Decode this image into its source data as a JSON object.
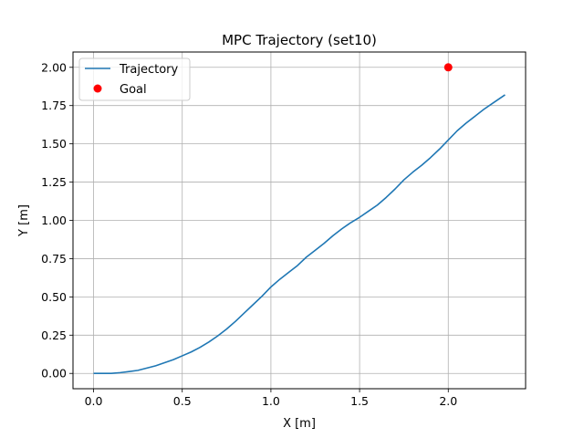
{
  "chart_data": {
    "type": "line",
    "title": "MPC Trajectory (set10)",
    "xlabel": "X [m]",
    "ylabel": "Y [m]",
    "xlim": [
      -0.116,
      2.436
    ],
    "ylim": [
      -0.1,
      2.1
    ],
    "xticks": [
      0.0,
      0.5,
      1.0,
      1.5,
      2.0
    ],
    "xtick_labels": [
      "0.0",
      "0.5",
      "1.0",
      "1.5",
      "2.0"
    ],
    "yticks": [
      0.0,
      0.25,
      0.5,
      0.75,
      1.0,
      1.25,
      1.5,
      1.75,
      2.0
    ],
    "ytick_labels": [
      "0.00",
      "0.25",
      "0.50",
      "0.75",
      "1.00",
      "1.25",
      "1.50",
      "1.75",
      "2.00"
    ],
    "grid": true,
    "legend_position": "top-left",
    "series": [
      {
        "name": "Trajectory",
        "kind": "line",
        "color": "#1f77b4",
        "x": [
          0.0,
          0.05,
          0.1,
          0.15,
          0.2,
          0.25,
          0.3,
          0.35,
          0.4,
          0.45,
          0.5,
          0.55,
          0.6,
          0.65,
          0.7,
          0.75,
          0.8,
          0.85,
          0.9,
          0.95,
          1.0,
          1.05,
          1.1,
          1.15,
          1.2,
          1.25,
          1.3,
          1.35,
          1.4,
          1.45,
          1.5,
          1.55,
          1.6,
          1.65,
          1.7,
          1.75,
          1.8,
          1.85,
          1.9,
          1.95,
          2.0,
          2.05,
          2.1,
          2.15,
          2.2,
          2.25,
          2.32
        ],
        "y": [
          0.0,
          0.0,
          0.0,
          0.005,
          0.012,
          0.02,
          0.035,
          0.05,
          0.07,
          0.09,
          0.115,
          0.14,
          0.17,
          0.205,
          0.245,
          0.29,
          0.34,
          0.395,
          0.45,
          0.505,
          0.565,
          0.615,
          0.66,
          0.705,
          0.76,
          0.805,
          0.85,
          0.9,
          0.945,
          0.985,
          1.02,
          1.06,
          1.1,
          1.15,
          1.205,
          1.265,
          1.315,
          1.36,
          1.41,
          1.465,
          1.525,
          1.585,
          1.635,
          1.68,
          1.725,
          1.765,
          1.82
        ]
      },
      {
        "name": "Goal",
        "kind": "marker",
        "color": "#ff0000",
        "x": [
          2.0
        ],
        "y": [
          2.0
        ]
      }
    ]
  }
}
